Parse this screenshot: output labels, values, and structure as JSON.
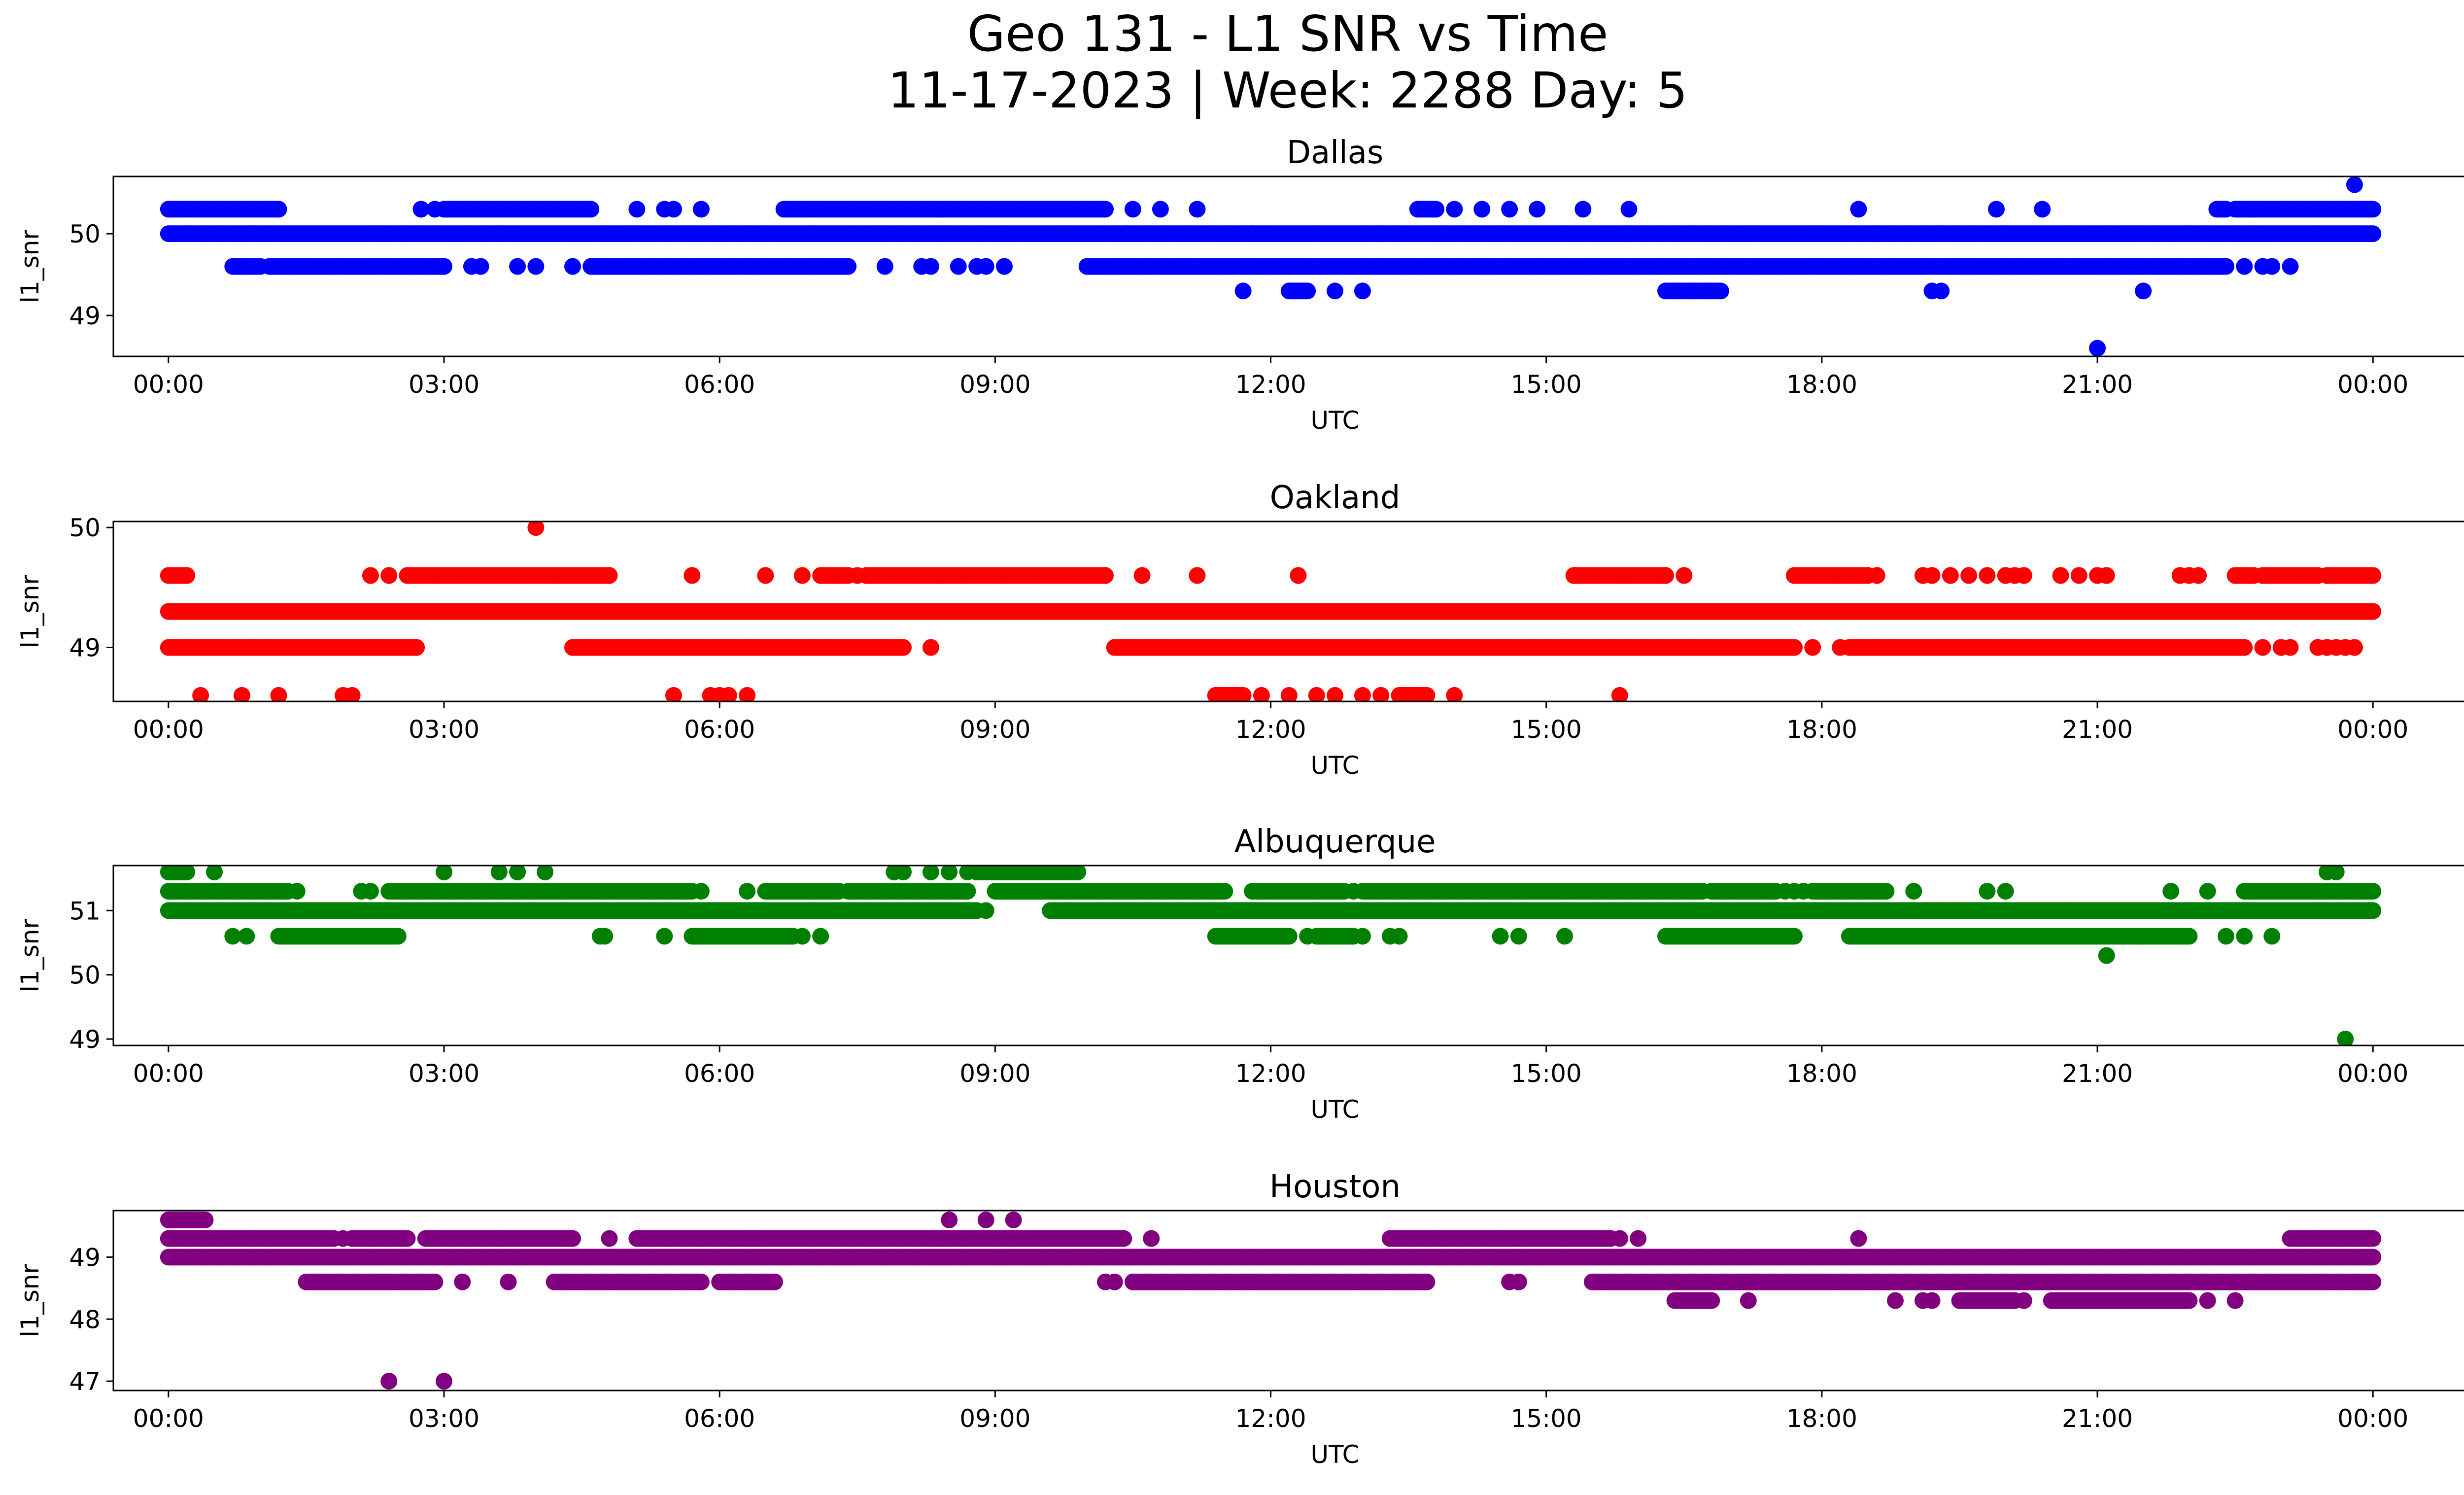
{
  "figure": {
    "title_line1": "Geo 131 - L1 SNR vs Time",
    "title_line2": "11-17-2023 | Week: 2288 Day: 5"
  },
  "chart_data": [
    {
      "type": "scatter",
      "title": "Dallas",
      "xlabel": "UTC",
      "ylabel": "l1_snr",
      "color": "#0000ff",
      "x_unit": "hours UTC",
      "xlim": [
        -0.6,
        26.0
      ],
      "ylim": [
        48.5,
        50.7
      ],
      "xticks": [
        0,
        3,
        6,
        9,
        12,
        15,
        18,
        21,
        24
      ],
      "xticklabels": [
        "00:00",
        "03:00",
        "06:00",
        "09:00",
        "12:00",
        "15:00",
        "18:00",
        "21:00",
        "00:00"
      ],
      "yticks": [
        49,
        50
      ],
      "yticklabels": [
        "49",
        "50"
      ],
      "series": [
        {
          "y": 50.0,
          "runs": [
            [
              0.0,
              24.0
            ]
          ],
          "points": []
        },
        {
          "y": 50.3,
          "runs": [
            [
              0.0,
              1.2
            ],
            [
              3.0,
              4.6
            ],
            [
              6.7,
              10.2
            ],
            [
              13.6,
              13.8
            ],
            [
              22.3,
              22.4
            ],
            [
              22.5,
              24.0
            ]
          ],
          "points": [
            2.75,
            2.9,
            5.1,
            5.4,
            5.5,
            5.8,
            10.5,
            10.8,
            11.2,
            14.0,
            14.3,
            14.6,
            14.9,
            15.4,
            15.9,
            18.4,
            19.9,
            20.4
          ]
        },
        {
          "y": 49.6,
          "runs": [
            [
              0.7,
              1.0
            ],
            [
              1.1,
              3.0
            ],
            [
              4.6,
              7.4
            ],
            [
              10.0,
              22.4
            ]
          ],
          "points": [
            3.3,
            3.4,
            3.8,
            4.0,
            4.4,
            7.8,
            8.2,
            8.3,
            8.6,
            8.8,
            8.9,
            9.1,
            22.6,
            22.8,
            22.9,
            23.1
          ]
        },
        {
          "y": 49.3,
          "runs": [
            [
              12.2,
              12.4
            ],
            [
              16.3,
              16.9
            ]
          ],
          "points": [
            11.7,
            12.7,
            13.0,
            19.2,
            19.3,
            21.5
          ]
        },
        {
          "y": 48.6,
          "runs": [],
          "points": [
            21.0
          ]
        },
        {
          "y": 50.6,
          "runs": [],
          "points": [
            23.8
          ]
        }
      ]
    },
    {
      "type": "scatter",
      "title": "Oakland",
      "xlabel": "UTC",
      "ylabel": "l1_snr",
      "color": "#ff0000",
      "x_unit": "hours UTC",
      "xlim": [
        -0.6,
        26.0
      ],
      "ylim": [
        48.55,
        50.05
      ],
      "xticks": [
        0,
        3,
        6,
        9,
        12,
        15,
        18,
        21,
        24
      ],
      "xticklabels": [
        "00:00",
        "03:00",
        "06:00",
        "09:00",
        "12:00",
        "15:00",
        "18:00",
        "21:00",
        "00:00"
      ],
      "yticks": [
        49,
        50
      ],
      "yticklabels": [
        "49",
        "50"
      ],
      "series": [
        {
          "y": 49.3,
          "runs": [
            [
              0.0,
              24.0
            ]
          ],
          "points": []
        },
        {
          "y": 49.0,
          "runs": [
            [
              0.0,
              2.7
            ],
            [
              4.4,
              8.0
            ],
            [
              10.3,
              17.7
            ],
            [
              18.3,
              22.6
            ]
          ],
          "points": [
            8.3,
            17.9,
            18.2,
            22.8,
            23.0,
            23.1,
            23.4,
            23.5,
            23.6,
            23.7,
            23.8
          ]
        },
        {
          "y": 49.6,
          "runs": [
            [
              0.0,
              0.2
            ],
            [
              2.6,
              4.8
            ],
            [
              7.1,
              7.4
            ],
            [
              7.6,
              10.2
            ],
            [
              15.3,
              15.8
            ],
            [
              15.8,
              16.3
            ],
            [
              17.7,
              18.5
            ],
            [
              22.5,
              22.7
            ],
            [
              22.8,
              23.4
            ],
            [
              23.5,
              24.0
            ]
          ],
          "points": [
            2.2,
            2.4,
            5.7,
            6.5,
            6.9,
            7.5,
            10.6,
            11.2,
            12.3,
            16.5,
            18.6,
            19.1,
            19.2,
            19.4,
            19.6,
            19.8,
            20.0,
            20.1,
            20.2,
            20.6,
            20.8,
            21.0,
            21.1,
            21.9,
            22.0,
            22.1
          ]
        },
        {
          "y": 50.0,
          "runs": [],
          "points": [
            4.0
          ]
        },
        {
          "y": 48.6,
          "runs": [
            [
              11.4,
              11.7
            ],
            [
              13.4,
              13.7
            ]
          ],
          "points": [
            0.35,
            0.8,
            1.2,
            1.9,
            2.0,
            5.5,
            5.9,
            6.0,
            6.1,
            6.3,
            11.9,
            12.2,
            12.5,
            12.7,
            13.0,
            13.2,
            14.0,
            15.8
          ]
        }
      ]
    },
    {
      "type": "scatter",
      "title": "Albuquerque",
      "xlabel": "UTC",
      "ylabel": "l1_snr",
      "color": "#008000",
      "x_unit": "hours UTC",
      "xlim": [
        -0.6,
        26.0
      ],
      "ylim": [
        48.9,
        51.7
      ],
      "xticks": [
        0,
        3,
        6,
        9,
        12,
        15,
        18,
        21,
        24
      ],
      "xticklabels": [
        "00:00",
        "03:00",
        "06:00",
        "09:00",
        "12:00",
        "15:00",
        "18:00",
        "21:00",
        "00:00"
      ],
      "yticks": [
        49,
        50,
        51
      ],
      "yticklabels": [
        "49",
        "50",
        "51"
      ],
      "series": [
        {
          "y": 51.0,
          "runs": [
            [
              0.0,
              8.8
            ],
            [
              9.6,
              24.0
            ]
          ],
          "points": [
            8.9
          ]
        },
        {
          "y": 51.3,
          "runs": [
            [
              0.0,
              1.3
            ],
            [
              2.4,
              5.7
            ],
            [
              6.5,
              7.3
            ],
            [
              7.4,
              8.7
            ],
            [
              9.0,
              11.5
            ],
            [
              11.8,
              12.8
            ],
            [
              13.0,
              16.7
            ],
            [
              16.8,
              17.5
            ],
            [
              17.9,
              18.7
            ],
            [
              22.6,
              24.0
            ]
          ],
          "points": [
            1.3,
            1.4,
            2.1,
            2.2,
            5.8,
            6.3,
            12.9,
            16.8,
            17.6,
            17.7,
            17.8,
            19.0,
            19.8,
            20.0,
            21.8,
            22.2
          ]
        },
        {
          "y": 50.6,
          "runs": [
            [
              1.2,
              2.5
            ],
            [
              5.7,
              6.8
            ],
            [
              11.4,
              12.2
            ],
            [
              12.5,
              12.9
            ],
            [
              16.3,
              17.7
            ],
            [
              18.3,
              21.5
            ],
            [
              21.5,
              22.0
            ]
          ],
          "points": [
            0.7,
            0.85,
            4.7,
            4.75,
            5.4,
            6.9,
            7.1,
            12.4,
            13.0,
            13.3,
            13.4,
            14.5,
            14.7,
            15.2,
            22.4,
            22.6,
            22.9
          ]
        },
        {
          "y": 51.6,
          "runs": [
            [
              0.0,
              0.2
            ],
            [
              8.8,
              9.9
            ]
          ],
          "points": [
            0.5,
            3.0,
            3.6,
            3.8,
            4.1,
            7.9,
            8.0,
            8.3,
            8.5,
            8.7,
            23.5,
            23.6
          ]
        },
        {
          "y": 50.3,
          "runs": [],
          "points": [
            21.1
          ]
        },
        {
          "y": 49.0,
          "runs": [],
          "points": [
            23.7
          ]
        }
      ]
    },
    {
      "type": "scatter",
      "title": "Houston",
      "xlabel": "UTC",
      "ylabel": "l1_snr",
      "color": "#800080",
      "x_unit": "hours UTC",
      "xlim": [
        -0.6,
        26.0
      ],
      "ylim": [
        46.85,
        49.75
      ],
      "xticks": [
        0,
        3,
        6,
        9,
        12,
        15,
        18,
        21,
        24
      ],
      "xticklabels": [
        "00:00",
        "03:00",
        "06:00",
        "09:00",
        "12:00",
        "15:00",
        "18:00",
        "21:00",
        "00:00"
      ],
      "yticks": [
        47,
        48,
        49
      ],
      "yticklabels": [
        "47",
        "48",
        "49"
      ],
      "series": [
        {
          "y": 49.0,
          "runs": [
            [
              0.0,
              24.0
            ]
          ],
          "points": []
        },
        {
          "y": 49.3,
          "runs": [
            [
              0.0,
              1.8
            ],
            [
              2.0,
              2.6
            ],
            [
              2.8,
              4.4
            ],
            [
              5.1,
              6.4
            ],
            [
              6.4,
              10.4
            ],
            [
              13.3,
              15.7
            ],
            [
              23.1,
              24.0
            ]
          ],
          "points": [
            1.9,
            4.8,
            10.7,
            15.8,
            16.0,
            18.4
          ]
        },
        {
          "y": 48.6,
          "runs": [
            [
              1.5,
              2.9
            ],
            [
              4.2,
              5.8
            ],
            [
              6.0,
              6.6
            ],
            [
              10.5,
              13.7
            ],
            [
              15.5,
              24.0
            ]
          ],
          "points": [
            3.2,
            3.7,
            10.2,
            10.3,
            14.6,
            14.7
          ]
        },
        {
          "y": 48.3,
          "runs": [
            [
              16.4,
              16.8
            ],
            [
              19.5,
              20.1
            ],
            [
              20.5,
              22.0
            ]
          ],
          "points": [
            17.2,
            18.8,
            19.1,
            19.2,
            20.2,
            22.2,
            22.5
          ]
        },
        {
          "y": 49.6,
          "runs": [
            [
              0.0,
              0.4
            ]
          ],
          "points": [
            8.5,
            8.9,
            9.2
          ]
        },
        {
          "y": 47.0,
          "runs": [],
          "points": [
            2.4,
            3.0
          ]
        }
      ]
    }
  ]
}
